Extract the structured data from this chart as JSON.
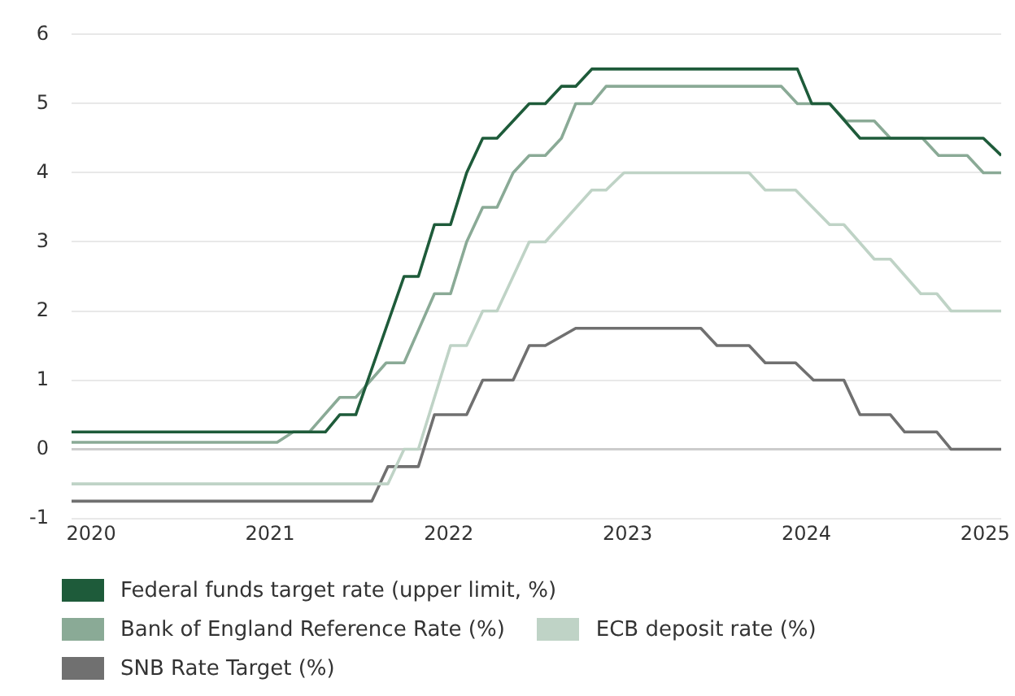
{
  "chart_data": {
    "type": "line",
    "xlim": [
      2019.89,
      2025.09
    ],
    "xticks": [
      2020,
      2021,
      2022,
      2023,
      2024,
      2025
    ],
    "ylim": [
      -1,
      6
    ],
    "yticks": [
      -1,
      0,
      1,
      2,
      3,
      4,
      5,
      6
    ],
    "grid": "y",
    "legend": "bottom",
    "marker": "none",
    "line_style": "solid",
    "series": [
      {
        "name": "Federal funds target rate (upper limit, %)",
        "color": "#1e5b3a",
        "x": [
          2019.89,
          2021.31,
          2021.39,
          2021.48,
          2021.75,
          2021.83,
          2021.92,
          2022.01,
          2022.1,
          2022.19,
          2022.27,
          2022.45,
          2022.54,
          2022.63,
          2022.71,
          2022.8,
          2023.95,
          2024.03,
          2024.13,
          2024.3,
          2024.99,
          2025.09
        ],
        "values": [
          0.25,
          0.25,
          0.5,
          0.5,
          2.5,
          2.5,
          3.25,
          3.25,
          4.0,
          4.5,
          4.5,
          5.0,
          5.0,
          5.25,
          5.25,
          5.5,
          5.5,
          5.0,
          5.0,
          4.5,
          4.5,
          4.25
        ]
      },
      {
        "name": "Bank of England Reference Rate (%)",
        "color": "#8aaa96",
        "x": [
          2019.89,
          2021.04,
          2021.13,
          2021.22,
          2021.39,
          2021.48,
          2021.65,
          2021.75,
          2021.92,
          2022.01,
          2022.1,
          2022.19,
          2022.27,
          2022.36,
          2022.45,
          2022.54,
          2022.63,
          2022.71,
          2022.8,
          2022.88,
          2023.86,
          2023.95,
          2024.13,
          2024.22,
          2024.38,
          2024.47,
          2024.65,
          2024.74,
          2024.9,
          2024.99,
          2025.09
        ],
        "values": [
          0.1,
          0.1,
          0.25,
          0.25,
          0.75,
          0.75,
          1.25,
          1.25,
          2.25,
          2.25,
          3.0,
          3.5,
          3.5,
          4.0,
          4.25,
          4.25,
          4.5,
          5.0,
          5.0,
          5.25,
          5.25,
          5.0,
          5.0,
          4.75,
          4.75,
          4.5,
          4.5,
          4.25,
          4.25,
          4.0,
          4.0
        ]
      },
      {
        "name": "ECB deposit rate (%)",
        "color": "#bfd3c6",
        "x": [
          2019.89,
          2021.66,
          2021.75,
          2021.83,
          2022.01,
          2022.1,
          2022.19,
          2022.27,
          2022.45,
          2022.54,
          2022.8,
          2022.88,
          2022.98,
          2023.68,
          2023.77,
          2023.94,
          2024.13,
          2024.21,
          2024.38,
          2024.47,
          2024.64,
          2024.73,
          2024.81,
          2025.09
        ],
        "values": [
          -0.5,
          -0.5,
          0,
          0,
          1.5,
          1.5,
          2.0,
          2.0,
          3.0,
          3.0,
          3.75,
          3.75,
          4.0,
          4.0,
          3.75,
          3.75,
          3.25,
          3.25,
          2.75,
          2.75,
          2.25,
          2.25,
          2.0,
          2.0
        ]
      },
      {
        "name": "SNB Rate Target (%)",
        "color": "#707070",
        "x": [
          2019.89,
          2021.57,
          2021.66,
          2021.83,
          2021.92,
          2022.1,
          2022.19,
          2022.36,
          2022.45,
          2022.54,
          2022.71,
          2023.41,
          2023.5,
          2023.68,
          2023.77,
          2023.94,
          2024.04,
          2024.21,
          2024.3,
          2024.47,
          2024.55,
          2024.73,
          2024.81,
          2025.09
        ],
        "values": [
          -0.75,
          -0.75,
          -0.25,
          -0.25,
          0.5,
          0.5,
          1.0,
          1.0,
          1.5,
          1.5,
          1.75,
          1.75,
          1.5,
          1.5,
          1.25,
          1.25,
          1.0,
          1.0,
          0.5,
          0.5,
          0.25,
          0.25,
          0,
          0
        ]
      }
    ]
  }
}
